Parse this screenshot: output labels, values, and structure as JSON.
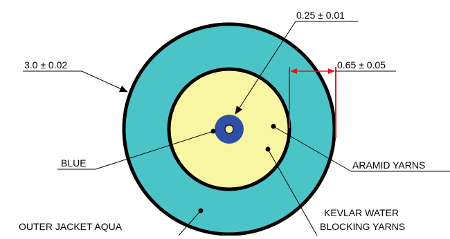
{
  "colors": {
    "outer_jacket": "#4bc4c8",
    "yarn_fill": "#f8f6a2",
    "fiber_core": "#2e4fa6",
    "fiber_center": "#f8f6a2",
    "dimension_red": "#e8121c",
    "line": "#000000"
  },
  "labels": {
    "outer_diameter": "3.0 ± 0.02",
    "fiber_diameter": "0.25 ± 0.01",
    "jacket_thickness": "0.65 ± 0.05",
    "blue": "BLUE",
    "aramid_yarns": "ARAMID YARNS",
    "kevlar_line1": "KEVLAR WATER",
    "kevlar_line2": "BLOCKING YARNS",
    "outer_jacket": "OUTER JACKET AQUA"
  }
}
